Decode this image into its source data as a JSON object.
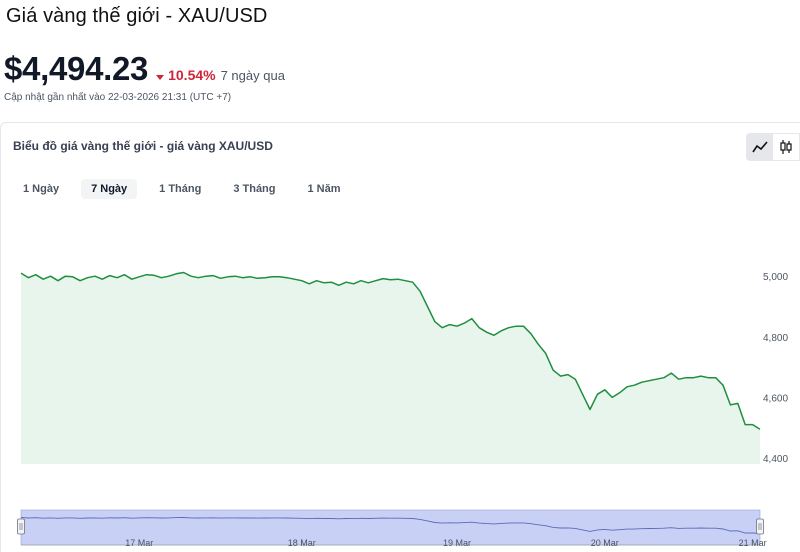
{
  "header": {
    "title": "Giá vàng thế giới - XAU/USD",
    "price": "$4,494.23",
    "change_pct": "10.54%",
    "change_period": "7 ngày qua",
    "updated": "Cập nhật gần nhất vào 22-03-2026 21:31 (UTC +7)"
  },
  "card": {
    "title": "Biểu đồ giá vàng thế giới - giá vàng XAU/USD",
    "tabs": [
      {
        "label": "1 Ngày",
        "active": false
      },
      {
        "label": "7 Ngày",
        "active": true
      },
      {
        "label": "1 Tháng",
        "active": false
      },
      {
        "label": "3 Tháng",
        "active": false
      },
      {
        "label": "1 Năm",
        "active": false
      }
    ],
    "view_icons": [
      "line-chart-icon",
      "candlestick-icon"
    ]
  },
  "colors": {
    "line": "#1e8f3e",
    "area": "#e8f5ec",
    "down": "#d0243a",
    "navigator_fill": "#c8d0f5"
  },
  "chart_data": {
    "type": "area",
    "y_ticks": [
      {
        "value": 5000,
        "label": "5,000"
      },
      {
        "value": 4800,
        "label": "4,800"
      },
      {
        "value": 4600,
        "label": "4,600"
      },
      {
        "value": 4400,
        "label": "4,400"
      }
    ],
    "ylim": [
      4380,
      5060
    ],
    "x_ticks": [
      "17 Mar",
      "18 Mar",
      "19 Mar",
      "20 Mar",
      "21 Mar"
    ],
    "x_range": [
      0,
      100
    ],
    "x_tick_positions": [
      16,
      38,
      59,
      79,
      99
    ],
    "x": [
      0,
      1,
      2,
      3,
      4,
      5,
      6,
      7,
      8,
      9,
      10,
      11,
      12,
      13,
      14,
      15,
      16,
      17,
      18,
      19,
      20,
      21,
      22,
      23,
      24,
      25,
      26,
      27,
      28,
      29,
      30,
      31,
      32,
      33,
      34,
      35,
      36,
      37,
      38,
      39,
      40,
      41,
      42,
      43,
      44,
      45,
      46,
      47,
      48,
      49,
      50,
      51,
      52,
      53,
      54,
      55,
      56,
      57,
      58,
      59,
      60,
      61,
      62,
      63,
      64,
      65,
      66,
      67,
      68,
      69,
      70,
      71,
      72,
      73,
      74,
      75,
      76,
      77,
      78,
      79,
      80,
      81,
      82,
      83,
      84,
      85,
      86,
      87,
      88,
      89,
      90,
      91,
      92,
      93,
      94,
      95,
      96,
      97,
      98,
      99,
      100
    ],
    "y": [
      5010,
      4995,
      5005,
      4990,
      5000,
      4985,
      5000,
      4998,
      4985,
      4995,
      5000,
      4990,
      5002,
      4995,
      5005,
      4990,
      4998,
      5005,
      5003,
      4995,
      5000,
      5008,
      5012,
      5000,
      4995,
      5000,
      5002,
      4993,
      4998,
      5000,
      4995,
      4998,
      4993,
      4995,
      4998,
      4998,
      4995,
      4990,
      4985,
      4975,
      4985,
      4978,
      4980,
      4970,
      4980,
      4975,
      4985,
      4978,
      4985,
      4992,
      4988,
      4990,
      4985,
      4980,
      4950,
      4900,
      4850,
      4830,
      4840,
      4835,
      4845,
      4860,
      4830,
      4815,
      4805,
      4820,
      4830,
      4835,
      4835,
      4810,
      4775,
      4745,
      4690,
      4670,
      4675,
      4660,
      4610,
      4560,
      4610,
      4625,
      4600,
      4615,
      4635,
      4640,
      4650,
      4655,
      4660,
      4665,
      4680,
      4660,
      4665,
      4665,
      4670,
      4665,
      4665,
      4640,
      4575,
      4580,
      4510,
      4510,
      4495
    ]
  }
}
